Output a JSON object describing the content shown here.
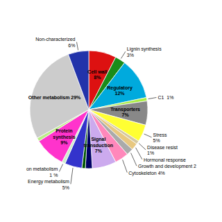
{
  "chart_data": {
    "type": "pie",
    "categories": [
      "Cell wall\n8%",
      "Lignin synthesis\n3%",
      "Regulatory\n12%",
      "C1  1%",
      "Transporters\n7%",
      "Stress\n5%",
      "Disease resist\n1%",
      "Hormonal response",
      "Growth and development 2",
      "Cytoskeleton 4%",
      "Signal\ntransduction\n7%",
      null,
      null,
      "Energy metabolism\n5%",
      "on metabolism\n1 %",
      "Protein\nsynthesis\n9%",
      null,
      "Other metabolism 29%",
      "Non-characterized\n6%"
    ],
    "values": [
      8,
      3,
      12,
      1,
      7,
      5,
      1,
      2,
      2,
      4,
      7,
      2,
      1,
      5,
      1,
      9,
      1,
      29,
      6
    ],
    "colors": [
      "#dd1111",
      "#1a8c1a",
      "#00aadd",
      "#aaee44",
      "#888888",
      "#ffff33",
      "#d4c8a0",
      "#e8c880",
      "#aaaaaa",
      "#ff88bb",
      "#ccaaee",
      "#000066",
      "#005500",
      "#3333cc",
      "#cceecc",
      "#ff33cc",
      "#bbee88",
      "#cccccc",
      "#2233aa"
    ]
  }
}
